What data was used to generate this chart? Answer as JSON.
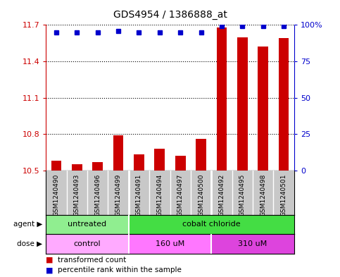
{
  "title": "GDS4954 / 1386888_at",
  "samples": [
    "GSM1240490",
    "GSM1240493",
    "GSM1240496",
    "GSM1240499",
    "GSM1240491",
    "GSM1240494",
    "GSM1240497",
    "GSM1240500",
    "GSM1240492",
    "GSM1240495",
    "GSM1240498",
    "GSM1240501"
  ],
  "transformed_count": [
    10.58,
    10.55,
    10.57,
    10.79,
    10.63,
    10.68,
    10.62,
    10.76,
    11.68,
    11.6,
    11.52,
    11.59
  ],
  "percentile_rank": [
    95,
    95,
    95,
    96,
    95,
    95,
    95,
    95,
    99,
    99,
    99,
    99
  ],
  "ylim_left": [
    10.5,
    11.7
  ],
  "ylim_right": [
    0,
    100
  ],
  "yticks_left": [
    10.5,
    10.8,
    11.1,
    11.4,
    11.7
  ],
  "yticks_right": [
    0,
    25,
    50,
    75,
    100
  ],
  "ytick_labels_left": [
    "10.5",
    "10.8",
    "11.1",
    "11.4",
    "11.7"
  ],
  "ytick_labels_right": [
    "0",
    "25",
    "50",
    "75",
    "100%"
  ],
  "bar_color": "#cc0000",
  "dot_color": "#0000cc",
  "agent_groups": [
    {
      "label": "untreated",
      "start": 0,
      "end": 4,
      "color": "#90ee90"
    },
    {
      "label": "cobalt chloride",
      "start": 4,
      "end": 12,
      "color": "#44dd44"
    }
  ],
  "dose_groups": [
    {
      "label": "control",
      "start": 0,
      "end": 4,
      "color": "#ffaaff"
    },
    {
      "label": "160 uM",
      "start": 4,
      "end": 8,
      "color": "#ff77ff"
    },
    {
      "label": "310 uM",
      "start": 8,
      "end": 12,
      "color": "#dd44dd"
    }
  ],
  "sample_bg_color": "#c8c8c8",
  "grid_color": "#000000",
  "left_axis_color": "#cc0000",
  "right_axis_color": "#0000cc",
  "bar_width": 0.5,
  "legend_items": [
    "transformed count",
    "percentile rank within the sample"
  ],
  "legend_colors": [
    "#cc0000",
    "#0000cc"
  ],
  "group_boundaries_agent": [
    4
  ],
  "group_boundaries_dose": [
    4,
    8
  ],
  "title_fontsize": 10,
  "tick_fontsize": 8,
  "label_fontsize": 8,
  "sample_fontsize": 6.5
}
